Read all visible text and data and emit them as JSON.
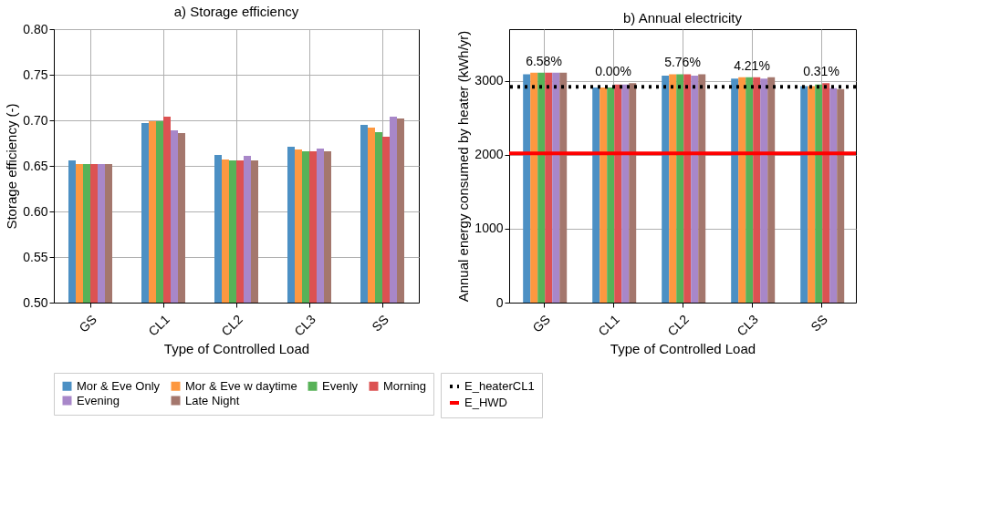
{
  "chart_data": [
    {
      "type": "bar",
      "title": "a) Storage efficiency",
      "xlabel": "Type of Controlled Load",
      "ylabel": "Storage efficiency (-)",
      "categories": [
        "GS",
        "CL1",
        "CL2",
        "CL3",
        "SS"
      ],
      "series": [
        {
          "name": "Mor & Eve Only",
          "color": "#4c90c4",
          "values": [
            0.656,
            0.697,
            0.662,
            0.671,
            0.695
          ]
        },
        {
          "name": "Mor & Eve w daytime",
          "color": "#fd9840",
          "values": [
            0.652,
            0.699,
            0.657,
            0.668,
            0.692
          ]
        },
        {
          "name": "Evenly",
          "color": "#58b258",
          "values": [
            0.652,
            0.699,
            0.656,
            0.666,
            0.687
          ]
        },
        {
          "name": "Morning",
          "color": "#dc5252",
          "values": [
            0.652,
            0.704,
            0.656,
            0.666,
            0.682
          ]
        },
        {
          "name": "Evening",
          "color": "#a887c9",
          "values": [
            0.652,
            0.689,
            0.661,
            0.669,
            0.704
          ]
        },
        {
          "name": "Late Night",
          "color": "#a4776d",
          "values": [
            0.652,
            0.686,
            0.656,
            0.666,
            0.702
          ]
        }
      ],
      "ylim": [
        0.5,
        0.8
      ],
      "yticks": [
        {
          "value": 0.5,
          "label": "0.50"
        },
        0.55,
        {
          "value": 0.6,
          "label": "0.60"
        },
        0.65,
        {
          "value": 0.7,
          "label": "0.70"
        },
        0.75,
        {
          "value": 0.8,
          "label": "0.80"
        }
      ],
      "grid": true,
      "legend": "bottom"
    },
    {
      "type": "bar",
      "title": "b) Annual electricity",
      "xlabel": "Type of Controlled Load",
      "ylabel": "Annual energy consumed by heater (kWh/yr)",
      "categories": [
        "GS",
        "CL1",
        "CL2",
        "CL3",
        "SS"
      ],
      "series": [
        {
          "name": "Mor & Eve Only",
          "color": "#4c90c4",
          "values": [
            3090,
            2910,
            3070,
            3030,
            2930
          ]
        },
        {
          "name": "Mor & Eve w daytime",
          "color": "#fd9840",
          "values": [
            3110,
            2910,
            3090,
            3050,
            2930
          ]
        },
        {
          "name": "Evenly",
          "color": "#58b258",
          "values": [
            3110,
            2910,
            3090,
            3050,
            2950
          ]
        },
        {
          "name": "Morning",
          "color": "#dc5252",
          "values": [
            3110,
            2950,
            3090,
            3050,
            2970
          ]
        },
        {
          "name": "Evening",
          "color": "#a887c9",
          "values": [
            3110,
            2950,
            3070,
            3030,
            2900
          ]
        },
        {
          "name": "Late Night",
          "color": "#a4776d",
          "values": [
            3110,
            2970,
            3090,
            3050,
            2890
          ]
        }
      ],
      "ylim": [
        0,
        3700
      ],
      "yticks": [
        0,
        1000,
        2000,
        3000
      ],
      "ref_lines": [
        {
          "axis": "y",
          "value": 2920,
          "label": "E_heaterCL1",
          "color": "#000000",
          "line_style": "dotted"
        },
        {
          "axis": "y",
          "value": 2020,
          "label": "E_HWD",
          "color": "#ff0000",
          "line_style": "solid"
        }
      ],
      "annotations": [
        "6.58%",
        "0.00%",
        "5.76%",
        "4.21%",
        "0.31%"
      ],
      "grid": true,
      "legend": "bottom"
    }
  ]
}
